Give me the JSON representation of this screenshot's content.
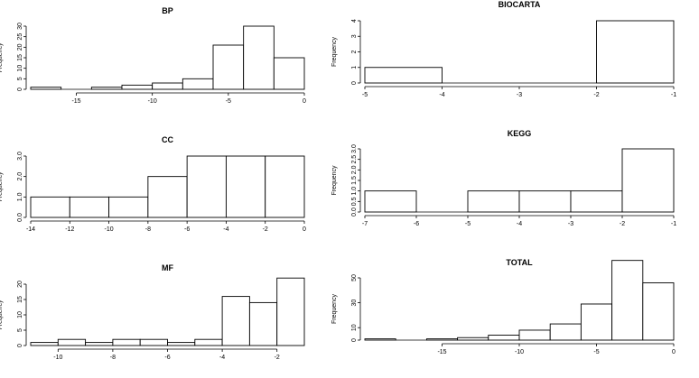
{
  "chart_data": [
    {
      "type": "bar",
      "title": "BP",
      "xlabel": "",
      "ylabel": "Frequency",
      "bins": [
        [
          -18,
          -16
        ],
        [
          -16,
          -14
        ],
        [
          -14,
          -12
        ],
        [
          -12,
          -10
        ],
        [
          -10,
          -8
        ],
        [
          -8,
          -6
        ],
        [
          -6,
          -4
        ],
        [
          -4,
          -2
        ],
        [
          -2,
          0
        ]
      ],
      "values": [
        1,
        0,
        1,
        2,
        3,
        5,
        21,
        30,
        15
      ],
      "xlim": [
        -18,
        0
      ],
      "ylim": [
        0,
        30
      ],
      "xticks": [
        -15,
        -10,
        -5,
        0
      ],
      "yticks": [
        0,
        5,
        10,
        15,
        20,
        25,
        30
      ]
    },
    {
      "type": "bar",
      "title": "BIOCARTA",
      "xlabel": "",
      "ylabel": "Frequency",
      "bins": [
        [
          -5,
          -4
        ],
        [
          -4,
          -3
        ],
        [
          -3,
          -2
        ],
        [
          -2,
          -1
        ]
      ],
      "values": [
        1,
        0,
        0,
        4
      ],
      "xlim": [
        -5,
        -1
      ],
      "ylim": [
        0,
        4
      ],
      "xticks": [
        -5,
        -4,
        -3,
        -2,
        -1
      ],
      "yticks": [
        0,
        1,
        2,
        3,
        4
      ]
    },
    {
      "type": "bar",
      "title": "CC",
      "xlabel": "",
      "ylabel": "Frequency",
      "bins": [
        [
          -14,
          -12
        ],
        [
          -12,
          -10
        ],
        [
          -10,
          -8
        ],
        [
          -8,
          -6
        ],
        [
          -6,
          -4
        ],
        [
          -4,
          -2
        ],
        [
          -2,
          0
        ]
      ],
      "values": [
        1,
        1,
        1,
        2,
        3,
        3,
        3
      ],
      "xlim": [
        -14,
        0
      ],
      "ylim": [
        0,
        3
      ],
      "xticks": [
        -14,
        -12,
        -10,
        -8,
        -6,
        -4,
        -2,
        0
      ],
      "yticks": [
        0.0,
        1.0,
        2.0,
        3.0
      ]
    },
    {
      "type": "bar",
      "title": "KEGG",
      "xlabel": "",
      "ylabel": "Frequency",
      "bins": [
        [
          -7,
          -6
        ],
        [
          -6,
          -5
        ],
        [
          -5,
          -4
        ],
        [
          -4,
          -3
        ],
        [
          -3,
          -2
        ],
        [
          -2,
          -1
        ]
      ],
      "values": [
        1,
        0,
        1,
        1,
        1,
        3
      ],
      "xlim": [
        -7,
        -1
      ],
      "ylim": [
        0,
        3
      ],
      "xticks": [
        -7,
        -6,
        -5,
        -4,
        -3,
        -2,
        -1
      ],
      "yticks": [
        0.0,
        0.5,
        1.0,
        1.5,
        2.0,
        2.5,
        3.0
      ]
    },
    {
      "type": "bar",
      "title": "MF",
      "xlabel": "",
      "ylabel": "Frequency",
      "bins": [
        [
          -11,
          -10
        ],
        [
          -10,
          -9
        ],
        [
          -9,
          -8
        ],
        [
          -8,
          -7
        ],
        [
          -7,
          -6
        ],
        [
          -6,
          -5
        ],
        [
          -5,
          -4
        ],
        [
          -4,
          -3
        ],
        [
          -3,
          -2
        ],
        [
          -2,
          -1
        ]
      ],
      "values": [
        1,
        2,
        1,
        2,
        2,
        1,
        2,
        16,
        14,
        22
      ],
      "xlim": [
        -11,
        -1
      ],
      "ylim": [
        0,
        20
      ],
      "xticks": [
        -10,
        -8,
        -6,
        -4,
        -2
      ],
      "yticks": [
        0,
        5,
        10,
        15,
        20
      ]
    },
    {
      "type": "bar",
      "title": "TOTAL",
      "xlabel": "",
      "ylabel": "Frequency",
      "bins": [
        [
          -20,
          -18
        ],
        [
          -18,
          -16
        ],
        [
          -16,
          -14
        ],
        [
          -14,
          -12
        ],
        [
          -12,
          -10
        ],
        [
          -10,
          -8
        ],
        [
          -8,
          -6
        ],
        [
          -6,
          -4
        ],
        [
          -4,
          -2
        ],
        [
          -2,
          0
        ]
      ],
      "values": [
        1,
        0,
        1,
        2,
        4,
        8,
        13,
        29,
        64,
        46
      ],
      "xlim": [
        -20,
        0
      ],
      "ylim": [
        0,
        50
      ],
      "xticks": [
        -15,
        -10,
        -5,
        0
      ],
      "yticks": [
        0,
        10,
        30,
        50
      ]
    }
  ]
}
